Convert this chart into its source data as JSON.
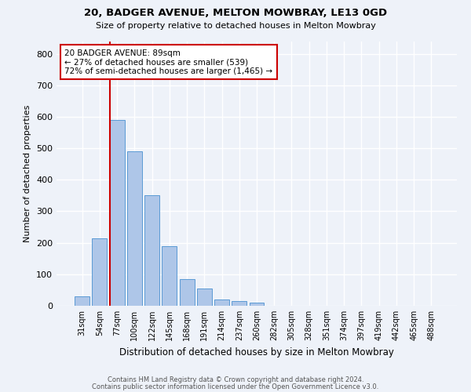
{
  "title_line1": "20, BADGER AVENUE, MELTON MOWBRAY, LE13 0GD",
  "title_line2": "Size of property relative to detached houses in Melton Mowbray",
  "xlabel": "Distribution of detached houses by size in Melton Mowbray",
  "ylabel": "Number of detached properties",
  "categories": [
    "31sqm",
    "54sqm",
    "77sqm",
    "100sqm",
    "122sqm",
    "145sqm",
    "168sqm",
    "191sqm",
    "214sqm",
    "237sqm",
    "260sqm",
    "282sqm",
    "305sqm",
    "328sqm",
    "351sqm",
    "374sqm",
    "397sqm",
    "419sqm",
    "442sqm",
    "465sqm",
    "488sqm"
  ],
  "values": [
    30,
    215,
    590,
    490,
    350,
    190,
    85,
    55,
    20,
    14,
    10,
    0,
    0,
    0,
    0,
    0,
    0,
    0,
    0,
    0,
    0
  ],
  "bar_color": "#aec6e8",
  "bar_edgecolor": "#5b9bd5",
  "marker_color": "#cc0000",
  "annotation_text": "20 BADGER AVENUE: 89sqm\n← 27% of detached houses are smaller (539)\n72% of semi-detached houses are larger (1,465) →",
  "annotation_box_color": "#ffffff",
  "annotation_box_edgecolor": "#cc0000",
  "ylim": [
    0,
    840
  ],
  "yticks": [
    0,
    100,
    200,
    300,
    400,
    500,
    600,
    700,
    800
  ],
  "footer_line1": "Contains HM Land Registry data © Crown copyright and database right 2024.",
  "footer_line2": "Contains public sector information licensed under the Open Government Licence v3.0.",
  "background_color": "#eef2f9",
  "grid_color": "#ffffff"
}
